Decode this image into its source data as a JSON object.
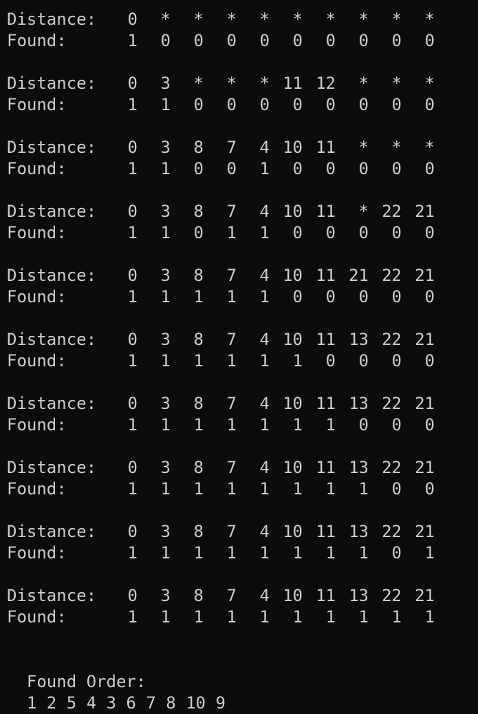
{
  "labels": {
    "distance": "Distance:",
    "found": "Found:"
  },
  "iterations": [
    {
      "distance": [
        "0",
        "*",
        "*",
        "*",
        "*",
        "*",
        "*",
        "*",
        "*",
        "*"
      ],
      "found": [
        "1",
        "0",
        "0",
        "0",
        "0",
        "0",
        "0",
        "0",
        "0",
        "0"
      ]
    },
    {
      "distance": [
        "0",
        "3",
        "*",
        "*",
        "*",
        "11",
        "12",
        "*",
        "*",
        "*"
      ],
      "found": [
        "1",
        "1",
        "0",
        "0",
        "0",
        "0",
        "0",
        "0",
        "0",
        "0"
      ]
    },
    {
      "distance": [
        "0",
        "3",
        "8",
        "7",
        "4",
        "10",
        "11",
        "*",
        "*",
        "*"
      ],
      "found": [
        "1",
        "1",
        "0",
        "0",
        "1",
        "0",
        "0",
        "0",
        "0",
        "0"
      ]
    },
    {
      "distance": [
        "0",
        "3",
        "8",
        "7",
        "4",
        "10",
        "11",
        "*",
        "22",
        "21"
      ],
      "found": [
        "1",
        "1",
        "0",
        "1",
        "1",
        "0",
        "0",
        "0",
        "0",
        "0"
      ]
    },
    {
      "distance": [
        "0",
        "3",
        "8",
        "7",
        "4",
        "10",
        "11",
        "21",
        "22",
        "21"
      ],
      "found": [
        "1",
        "1",
        "1",
        "1",
        "1",
        "0",
        "0",
        "0",
        "0",
        "0"
      ]
    },
    {
      "distance": [
        "0",
        "3",
        "8",
        "7",
        "4",
        "10",
        "11",
        "13",
        "22",
        "21"
      ],
      "found": [
        "1",
        "1",
        "1",
        "1",
        "1",
        "1",
        "0",
        "0",
        "0",
        "0"
      ]
    },
    {
      "distance": [
        "0",
        "3",
        "8",
        "7",
        "4",
        "10",
        "11",
        "13",
        "22",
        "21"
      ],
      "found": [
        "1",
        "1",
        "1",
        "1",
        "1",
        "1",
        "1",
        "0",
        "0",
        "0"
      ]
    },
    {
      "distance": [
        "0",
        "3",
        "8",
        "7",
        "4",
        "10",
        "11",
        "13",
        "22",
        "21"
      ],
      "found": [
        "1",
        "1",
        "1",
        "1",
        "1",
        "1",
        "1",
        "1",
        "0",
        "0"
      ]
    },
    {
      "distance": [
        "0",
        "3",
        "8",
        "7",
        "4",
        "10",
        "11",
        "13",
        "22",
        "21"
      ],
      "found": [
        "1",
        "1",
        "1",
        "1",
        "1",
        "1",
        "1",
        "1",
        "0",
        "1"
      ]
    },
    {
      "distance": [
        "0",
        "3",
        "8",
        "7",
        "4",
        "10",
        "11",
        "13",
        "22",
        "21"
      ],
      "found": [
        "1",
        "1",
        "1",
        "1",
        "1",
        "1",
        "1",
        "1",
        "1",
        "1"
      ]
    }
  ],
  "found_order": {
    "label": "Found Order:",
    "values": "1 2 5 4 3 6 7 8 10 9"
  },
  "colors": {
    "background": "#0c0c0c",
    "text": "#cccccc"
  }
}
